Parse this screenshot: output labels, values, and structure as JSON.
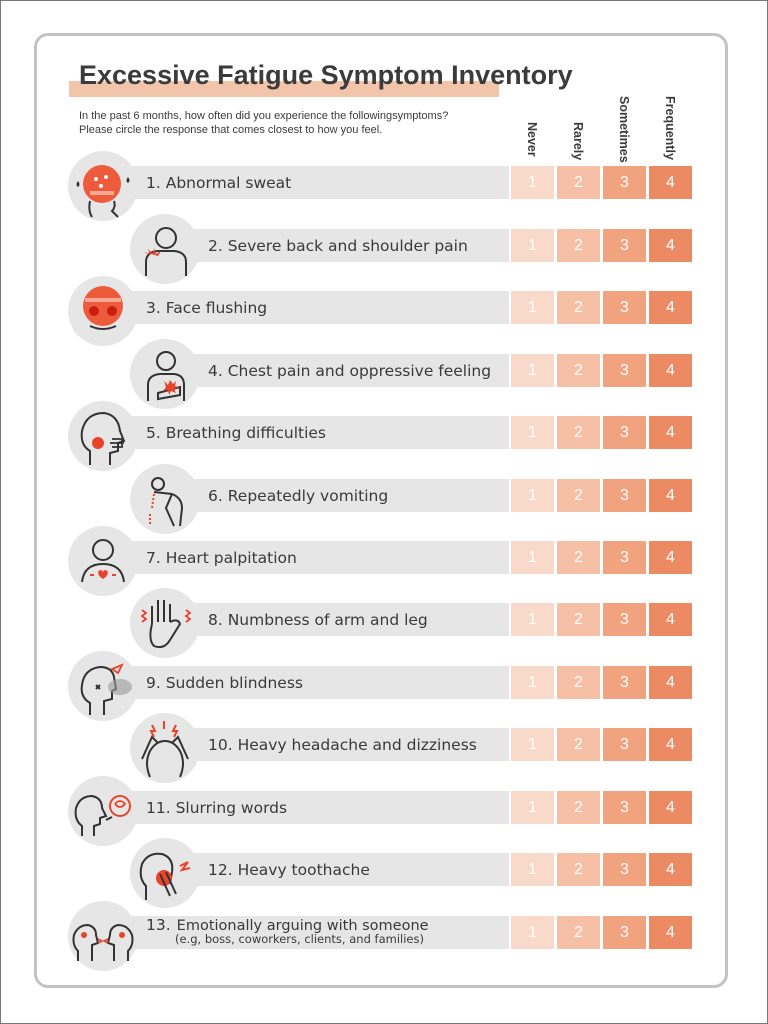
{
  "title": "Excessive Fatigue Symptom Inventory",
  "instructions": [
    "In the past 6 months, how often did you experience the followingsymptoms?",
    "Please circle the response that comes closest to how you feel."
  ],
  "scale_headers": [
    "Never",
    "Rarely",
    "Sometimes",
    "Frequently"
  ],
  "scale_values": [
    "1",
    "2",
    "3",
    "4"
  ],
  "scale_colors": [
    "#f9d9c9",
    "#f5c0a5",
    "#f1a27f",
    "#ec8a63"
  ],
  "accent_color": "#e8432b",
  "symptoms": [
    {
      "label": "1. Abnormal sweat",
      "icon": "sweating-head-icon"
    },
    {
      "label": "2. Severe back and shoulder pain",
      "icon": "shoulder-pain-icon"
    },
    {
      "label": "3. Face flushing",
      "icon": "flushed-face-icon"
    },
    {
      "label": "4. Chest pain and oppressive feeling",
      "icon": "chest-pain-icon"
    },
    {
      "label": "5. Breathing difficulties",
      "icon": "breathing-difficulty-icon"
    },
    {
      "label": "6. Repeatedly vomiting",
      "icon": "vomiting-icon"
    },
    {
      "label": "7. Heart palpitation",
      "icon": "heart-palpitation-icon"
    },
    {
      "label": "8. Numbness of arm and leg",
      "icon": "numb-hand-icon"
    },
    {
      "label": "9. Sudden blindness",
      "icon": "blindness-icon"
    },
    {
      "label": "10. Heavy headache and dizziness",
      "icon": "headache-icon"
    },
    {
      "label": "11. Slurring words",
      "icon": "slurred-speech-icon"
    },
    {
      "label": "12. Heavy toothache",
      "icon": "toothache-icon"
    },
    {
      "label": "13.",
      "label_line1": "Emotionally arguing with someone",
      "label_line2": "(e.g, boss, coworkers, clients, and families)",
      "icon": "arguing-icon"
    }
  ]
}
